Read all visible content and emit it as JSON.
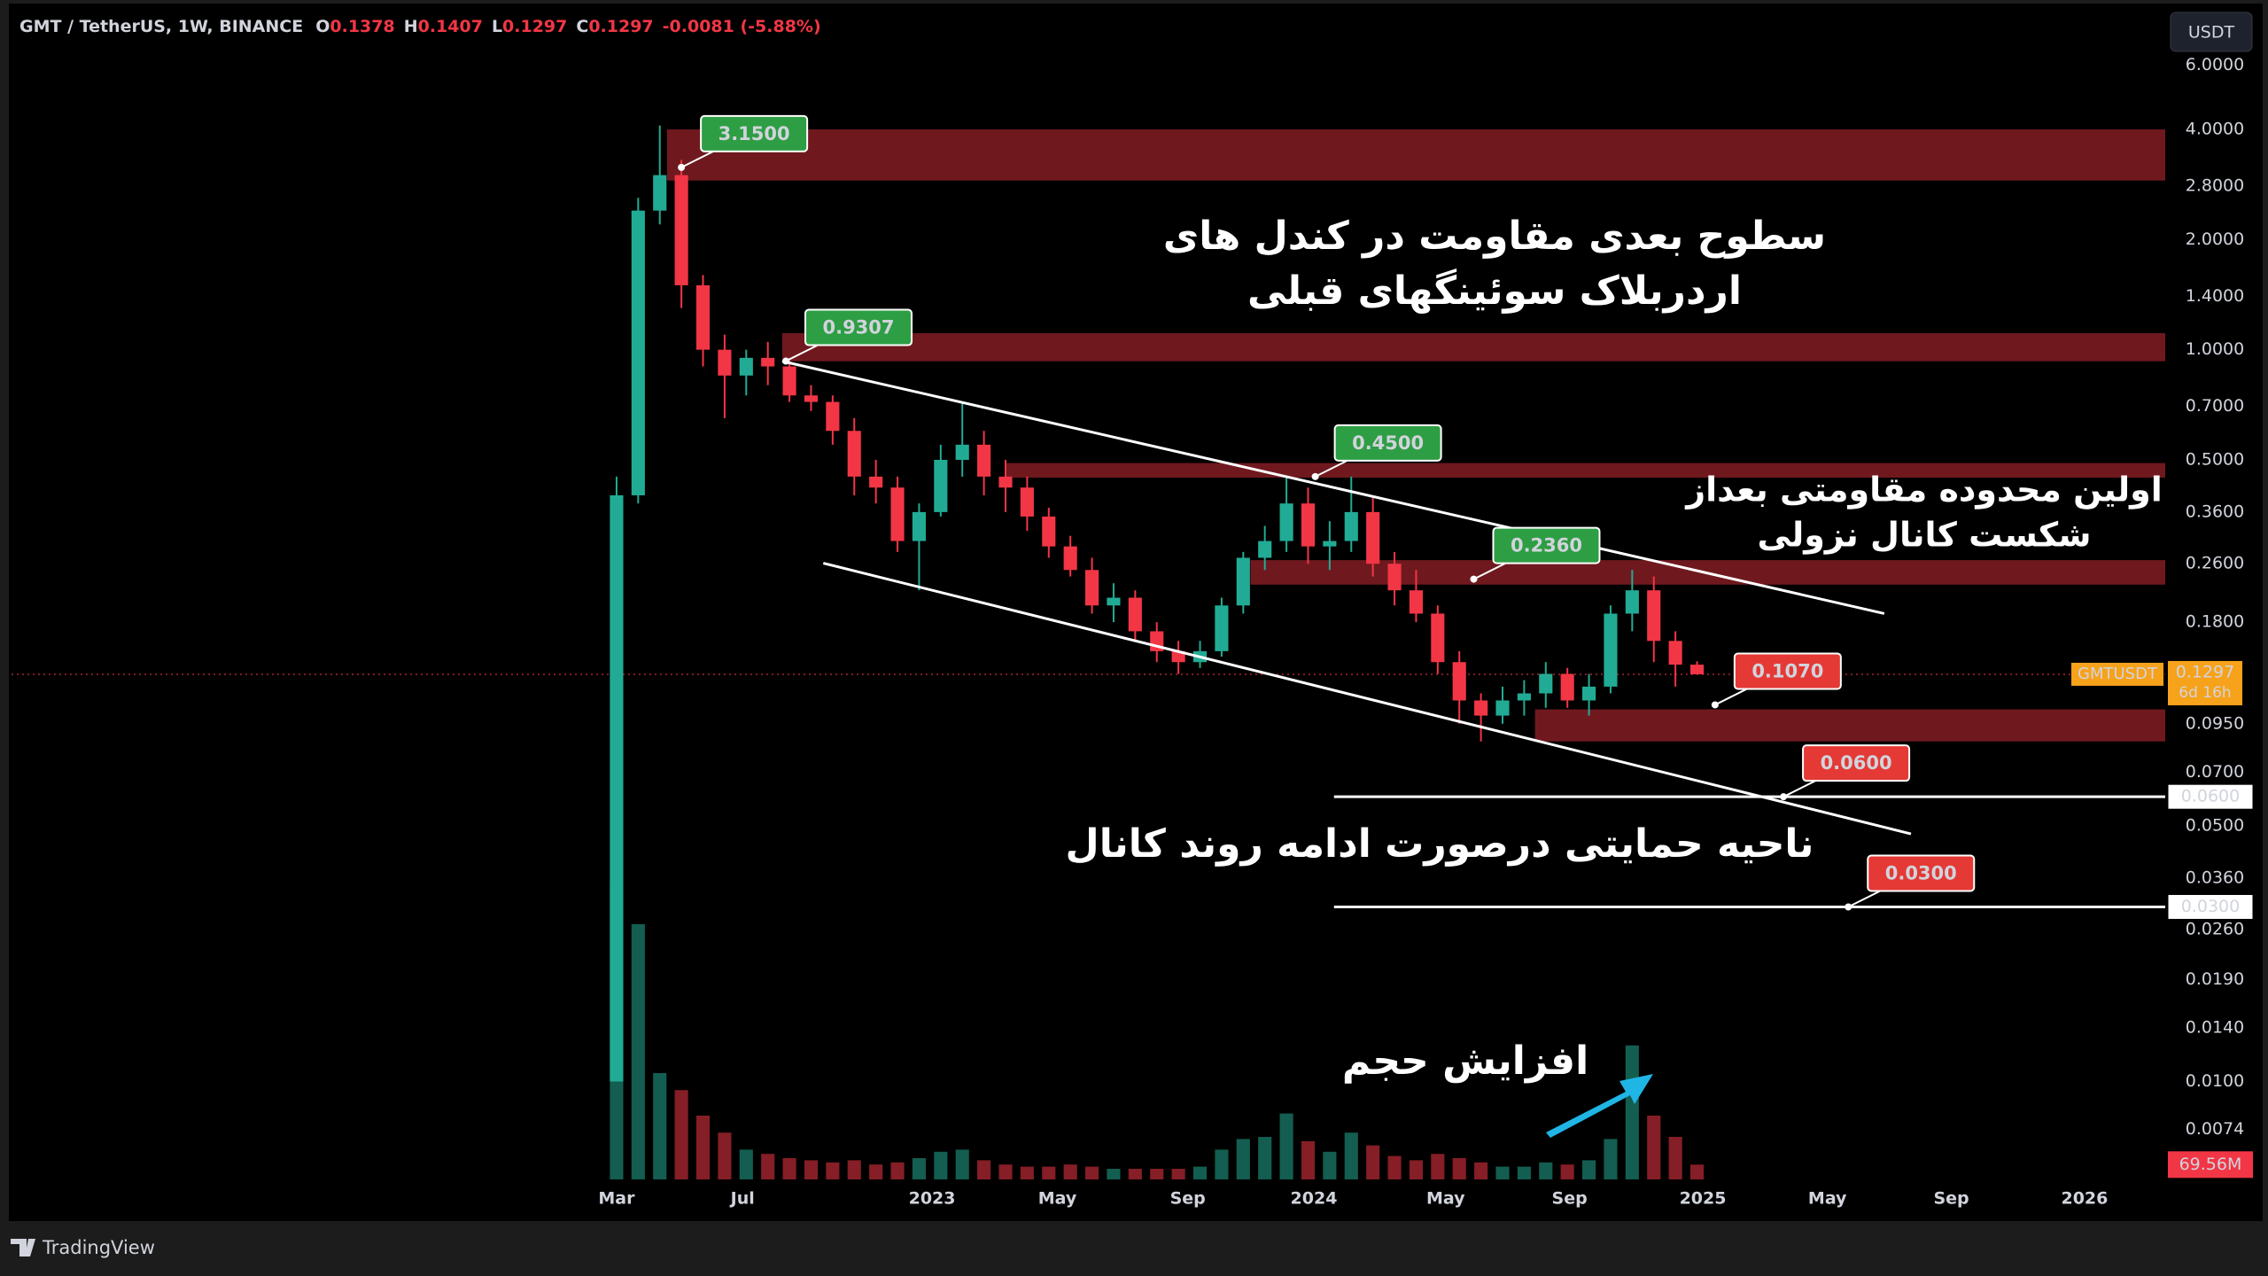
{
  "header": {
    "symbol": "GMT / TetherUS, 1W, BINANCE",
    "o_label": "O",
    "open": "0.1378",
    "h_label": "H",
    "high": "0.1407",
    "l_label": "L",
    "low": "0.1297",
    "c_label": "C",
    "close": "0.1297",
    "change": "-0.0081 (-5.88%)"
  },
  "currency_button": "USDT",
  "chart_data": {
    "type": "candlestick",
    "x": [
      0,
      3,
      6,
      9,
      12,
      15,
      18,
      21,
      24,
      27,
      30,
      33,
      36,
      39,
      42,
      45,
      48,
      51,
      54,
      57,
      60,
      63,
      66,
      69,
      72,
      75,
      78,
      81,
      84,
      87,
      90,
      93,
      96,
      99,
      102,
      105,
      108,
      111,
      114,
      117,
      120,
      123,
      126,
      129,
      132,
      135,
      138,
      141,
      144,
      147,
      150
    ],
    "open": [
      0.01,
      0.4,
      2.4,
      3.0,
      1.5,
      1.0,
      0.85,
      0.95,
      0.9,
      0.75,
      0.72,
      0.6,
      0.45,
      0.42,
      0.3,
      0.36,
      0.5,
      0.55,
      0.45,
      0.42,
      0.35,
      0.29,
      0.25,
      0.2,
      0.21,
      0.17,
      0.15,
      0.14,
      0.15,
      0.2,
      0.27,
      0.3,
      0.38,
      0.29,
      0.3,
      0.36,
      0.26,
      0.22,
      0.19,
      0.14,
      0.11,
      0.1,
      0.11,
      0.115,
      0.13,
      0.11,
      0.12,
      0.19,
      0.22,
      0.16,
      0.1378
    ],
    "high": [
      0.45,
      2.6,
      4.1,
      3.3,
      1.6,
      1.1,
      1.0,
      1.05,
      0.95,
      0.8,
      0.75,
      0.65,
      0.5,
      0.45,
      0.38,
      0.55,
      0.72,
      0.6,
      0.5,
      0.45,
      0.37,
      0.31,
      0.27,
      0.23,
      0.22,
      0.18,
      0.16,
      0.16,
      0.21,
      0.28,
      0.33,
      0.45,
      0.42,
      0.34,
      0.45,
      0.4,
      0.28,
      0.25,
      0.2,
      0.15,
      0.115,
      0.12,
      0.125,
      0.14,
      0.135,
      0.13,
      0.2,
      0.25,
      0.24,
      0.17,
      0.1407
    ],
    "low": [
      0.01,
      0.38,
      2.2,
      1.3,
      0.9,
      0.65,
      0.75,
      0.8,
      0.72,
      0.68,
      0.55,
      0.4,
      0.38,
      0.28,
      0.22,
      0.35,
      0.45,
      0.4,
      0.36,
      0.32,
      0.27,
      0.24,
      0.19,
      0.18,
      0.16,
      0.14,
      0.13,
      0.135,
      0.145,
      0.19,
      0.25,
      0.28,
      0.26,
      0.25,
      0.28,
      0.24,
      0.2,
      0.18,
      0.13,
      0.095,
      0.085,
      0.095,
      0.1,
      0.105,
      0.105,
      0.1,
      0.115,
      0.17,
      0.14,
      0.12,
      0.1297
    ],
    "close": [
      0.4,
      2.4,
      3.0,
      1.5,
      1.0,
      0.85,
      0.95,
      0.9,
      0.75,
      0.72,
      0.6,
      0.45,
      0.42,
      0.3,
      0.36,
      0.5,
      0.55,
      0.45,
      0.42,
      0.35,
      0.29,
      0.25,
      0.2,
      0.21,
      0.17,
      0.15,
      0.14,
      0.15,
      0.2,
      0.27,
      0.3,
      0.38,
      0.29,
      0.3,
      0.36,
      0.26,
      0.22,
      0.19,
      0.14,
      0.11,
      0.1,
      0.11,
      0.115,
      0.13,
      0.11,
      0.12,
      0.19,
      0.22,
      0.16,
      0.1378,
      0.1297
    ],
    "volume": [
      1400000000,
      1200000000,
      500000000,
      420000000,
      300000000,
      220000000,
      140000000,
      120000000,
      100000000,
      90000000,
      80000000,
      90000000,
      70000000,
      80000000,
      100000000,
      130000000,
      140000000,
      90000000,
      70000000,
      60000000,
      60000000,
      70000000,
      60000000,
      50000000,
      50000000,
      50000000,
      50000000,
      60000000,
      140000000,
      190000000,
      200000000,
      310000000,
      180000000,
      130000000,
      220000000,
      160000000,
      110000000,
      90000000,
      120000000,
      100000000,
      80000000,
      60000000,
      60000000,
      80000000,
      70000000,
      90000000,
      190000000,
      630000000,
      300000000,
      200000000,
      69560000
    ],
    "last_volume_label": "69.56M",
    "up_color": "#22ab94",
    "down_color": "#f23645",
    "xlim": [
      -84,
      215
    ],
    "xticks": [
      {
        "value": 0,
        "label": "Mar"
      },
      {
        "value": 17.5,
        "label": "Jul"
      },
      {
        "value": 43.8,
        "label": "2023"
      },
      {
        "value": 61.2,
        "label": "May"
      },
      {
        "value": 79.3,
        "label": "Sep"
      },
      {
        "value": 96.8,
        "label": "2024"
      },
      {
        "value": 115.1,
        "label": "May"
      },
      {
        "value": 132.3,
        "label": "Sep"
      },
      {
        "value": 150.8,
        "label": "2025"
      },
      {
        "value": 168.1,
        "label": "May"
      },
      {
        "value": 185.3,
        "label": "Sep"
      },
      {
        "value": 203.8,
        "label": "2026"
      }
    ],
    "ylim": [
      0.0054,
      8.4
    ],
    "log_scale": true,
    "yticks": [
      {
        "value": 6,
        "label": "6.0000"
      },
      {
        "value": 4,
        "label": "4.0000"
      },
      {
        "value": 2.8,
        "label": "2.8000"
      },
      {
        "value": 2,
        "label": "2.0000"
      },
      {
        "value": 1.4,
        "label": "1.4000"
      },
      {
        "value": 1,
        "label": "1.0000"
      },
      {
        "value": 0.7,
        "label": "0.7000"
      },
      {
        "value": 0.5,
        "label": "0.5000"
      },
      {
        "value": 0.36,
        "label": "0.3600"
      },
      {
        "value": 0.26,
        "label": "0.2600"
      },
      {
        "value": 0.18,
        "label": "0.1800"
      },
      {
        "value": 0.095,
        "label": "0.0950"
      },
      {
        "value": 0.07,
        "label": "0.0700"
      },
      {
        "value": 0.05,
        "label": "0.0500"
      },
      {
        "value": 0.036,
        "label": "0.0360"
      },
      {
        "value": 0.026,
        "label": "0.0260"
      },
      {
        "value": 0.019,
        "label": "0.0190"
      },
      {
        "value": 0.014,
        "label": "0.0140"
      },
      {
        "value": 0.01,
        "label": "0.0100"
      },
      {
        "value": 0.0074,
        "label": "0.0074"
      }
    ],
    "vlim": [
      0,
      1500000000
    ],
    "zone_color": "#7b1c22",
    "zones": [
      {
        "low": 2.9,
        "high": 4.0,
        "start": 7
      },
      {
        "low": 0.93,
        "high": 1.11,
        "start": 23
      },
      {
        "low": 0.447,
        "high": 0.49,
        "start": 54
      },
      {
        "low": 0.228,
        "high": 0.266,
        "start": 88
      },
      {
        "low": 0.085,
        "high": 0.104,
        "start": 127.5
      }
    ],
    "trend_lines": [
      {
        "x": [
          23,
          176
        ],
        "y": [
          0.93,
          0.19
        ]
      },
      {
        "x": [
          28.7,
          179.7
        ],
        "y": [
          0.261,
          0.0475
        ]
      }
    ],
    "levels": [
      {
        "value": 0.06,
        "label": "0.0600",
        "start": 99.6
      },
      {
        "value": 0.03,
        "label": "0.0300",
        "start": 99.6
      }
    ],
    "callouts": [
      {
        "x": 9,
        "value": 3.15,
        "label": "3.1500",
        "color": "#2e9e44"
      },
      {
        "x": 23.5,
        "value": 0.9307,
        "label": "0.9307",
        "color": "#2e9e44"
      },
      {
        "x": 97,
        "value": 0.45,
        "label": "0.4500",
        "color": "#2e9e44"
      },
      {
        "x": 119,
        "value": 0.236,
        "label": "0.2360",
        "color": "#2e9e44"
      },
      {
        "x": 152.5,
        "value": 0.107,
        "label": "0.1070",
        "color": "#e53935"
      },
      {
        "x": 162,
        "value": 0.06,
        "label": "0.0600",
        "color": "#e53935"
      },
      {
        "x": 171,
        "value": 0.03,
        "label": "0.0300",
        "color": "#e53935"
      }
    ],
    "last_price": {
      "symbol": "GMTUSDT",
      "value": 0.1297,
      "label": "0.1297",
      "countdown": "6d 16h",
      "color": "#f7a21b"
    }
  },
  "annotations": {
    "resistance_top": [
      "سطوح بعدی مقاومت در کندل های",
      "اردربلاک سوئینگهای قبلی"
    ],
    "resistance_first": [
      "اولین محدوده مقاومتی بعداز",
      "شکست کانال نزولی"
    ],
    "support": "ناحیه حمایتی درصورت ادامه روند کانال",
    "volume": "افزایش حجم"
  },
  "footer": "TradingView"
}
